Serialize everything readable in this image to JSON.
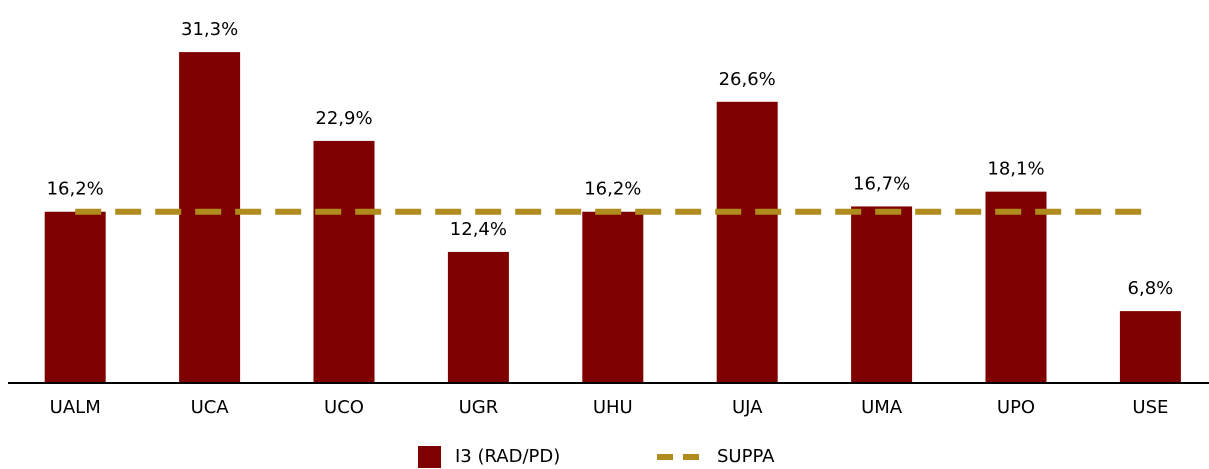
{
  "chart_data": {
    "type": "bar",
    "categories": [
      "UALM",
      "UCA",
      "UCO",
      "UGR",
      "UHU",
      "UJA",
      "UMA",
      "UPO",
      "USE"
    ],
    "series": [
      {
        "name": "I3 (RAD/PD)",
        "color": "#7f0000",
        "type": "bar",
        "values": [
          16.2,
          31.3,
          22.9,
          12.4,
          16.2,
          26.6,
          16.7,
          18.1,
          6.8
        ],
        "value_labels": [
          "16,2%",
          "31,3%",
          "22,9%",
          "12,4%",
          "16,2%",
          "26,6%",
          "16,7%",
          "18,1%",
          "6,8%"
        ]
      },
      {
        "name": "SUPPA",
        "color": "#b08c1e",
        "type": "line",
        "values": [
          16.2,
          16.2,
          16.2,
          16.2,
          16.2,
          16.2,
          16.2,
          16.2,
          16.2
        ]
      }
    ],
    "ylim": [
      0,
      35
    ],
    "legend": "bottom"
  }
}
